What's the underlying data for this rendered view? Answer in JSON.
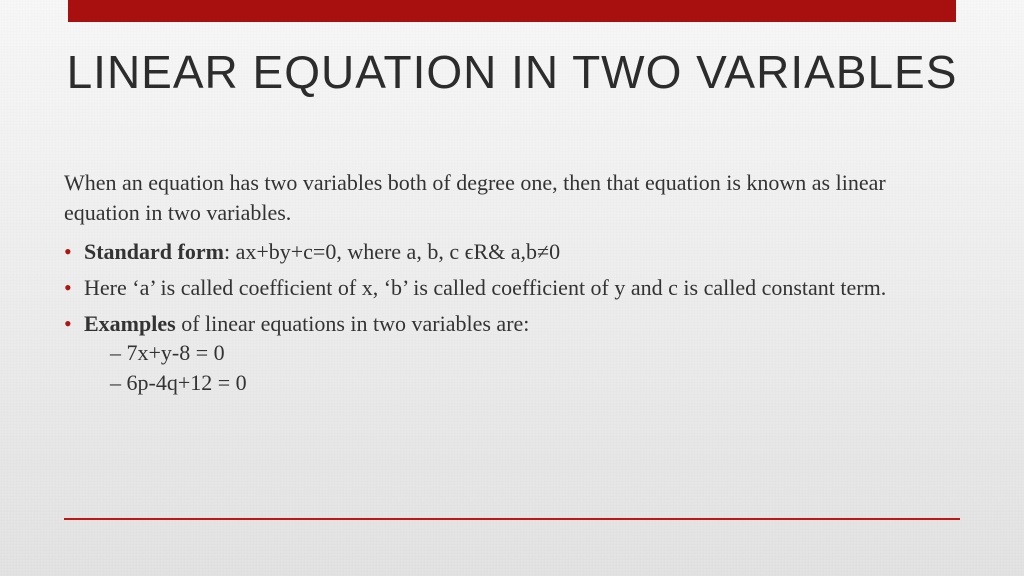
{
  "theme": {
    "accent": "#a81010",
    "top_bar_color": "#a81010",
    "bullet_color": "#b01515",
    "title_color": "#2c2c2c",
    "body_color": "#333333",
    "rule_color": "#c01616",
    "background_gradient_top": "#f7f7f7",
    "background_gradient_bottom": "#e2e2e2",
    "title_font": "Impact",
    "body_font": "Georgia",
    "title_fontsize_pt": 34,
    "body_fontsize_pt": 16
  },
  "slide": {
    "title": "LINEAR EQUATION IN TWO VARIABLES",
    "intro": "When an equation has two variables both of degree one, then that equation is known as linear equation in two variables.",
    "bullets": [
      {
        "lead": "Standard form",
        "rest": ": ax+by+c=0, where a, b, c ϵR& a,b≠0"
      },
      {
        "text": "Here ‘a’ is called coefficient of x, ‘b’ is called coefficient of y and c is called constant term."
      },
      {
        "lead": "Examples",
        "rest": " of linear equations in two variables are:",
        "sub": [
          "– 7x+y-8 = 0",
          "– 6p-4q+12 = 0"
        ]
      }
    ]
  }
}
